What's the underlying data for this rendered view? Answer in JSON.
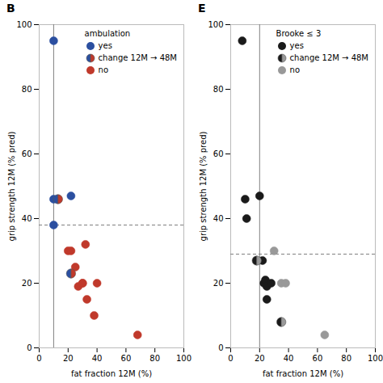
{
  "chart_data": [
    {
      "type": "scatter",
      "title": "B",
      "xlabel": "fat fraction 12M (%)",
      "ylabel": "grip strength 12M (% pred)",
      "xlim": [
        0,
        100
      ],
      "ylim": [
        0,
        100
      ],
      "xticks": [
        0,
        20,
        40,
        60,
        80,
        100
      ],
      "yticks": [
        0,
        20,
        40,
        60,
        80,
        100
      ],
      "grid": false,
      "legend": "upper right",
      "legend_title": "ambulation",
      "hline": 38,
      "vline": 10,
      "series": [
        {
          "name": "yes",
          "color": "#2b4fa0",
          "marker": "circle",
          "x": [
            10,
            10,
            10,
            22
          ],
          "y": [
            95,
            46,
            38,
            47
          ]
        },
        {
          "name": "change 12M → 48M",
          "color": "#555555",
          "marker": "half",
          "x": [
            13,
            22
          ],
          "y": [
            46,
            23
          ]
        },
        {
          "name": "no",
          "color": "#c0392b",
          "marker": "circle",
          "x": [
            13,
            20,
            22,
            25,
            27,
            30,
            30,
            32,
            33,
            38,
            40,
            68
          ],
          "y": [
            46,
            30,
            30,
            25,
            19,
            20,
            20,
            32,
            15,
            10,
            20,
            4
          ]
        }
      ]
    },
    {
      "type": "scatter",
      "title": "E",
      "xlabel": "fat fraction 12M (%)",
      "ylabel": "grip strength 12M (% pred)",
      "xlim": [
        0,
        100
      ],
      "ylim": [
        0,
        100
      ],
      "xticks": [
        0,
        20,
        40,
        60,
        80,
        100
      ],
      "yticks": [
        0,
        20,
        40,
        60,
        80,
        100
      ],
      "grid": false,
      "legend": "upper right",
      "legend_title": "Brooke ≤ 3",
      "hline": 29,
      "vline": 20,
      "series": [
        {
          "name": "yes",
          "color": "#1a1a1a",
          "marker": "circle",
          "x": [
            8,
            10,
            11,
            20,
            22,
            23,
            24,
            25,
            25,
            28
          ],
          "y": [
            95,
            46,
            40,
            47,
            27,
            20,
            21,
            19,
            15,
            20
          ]
        },
        {
          "name": "change 12M → 48M",
          "color": "#555555",
          "marker": "half",
          "x": [
            18,
            35
          ],
          "y": [
            27,
            8
          ]
        },
        {
          "name": "no",
          "color": "#999999",
          "marker": "circle",
          "x": [
            30,
            35,
            38,
            65
          ],
          "y": [
            30,
            20,
            20,
            4
          ]
        }
      ]
    }
  ]
}
